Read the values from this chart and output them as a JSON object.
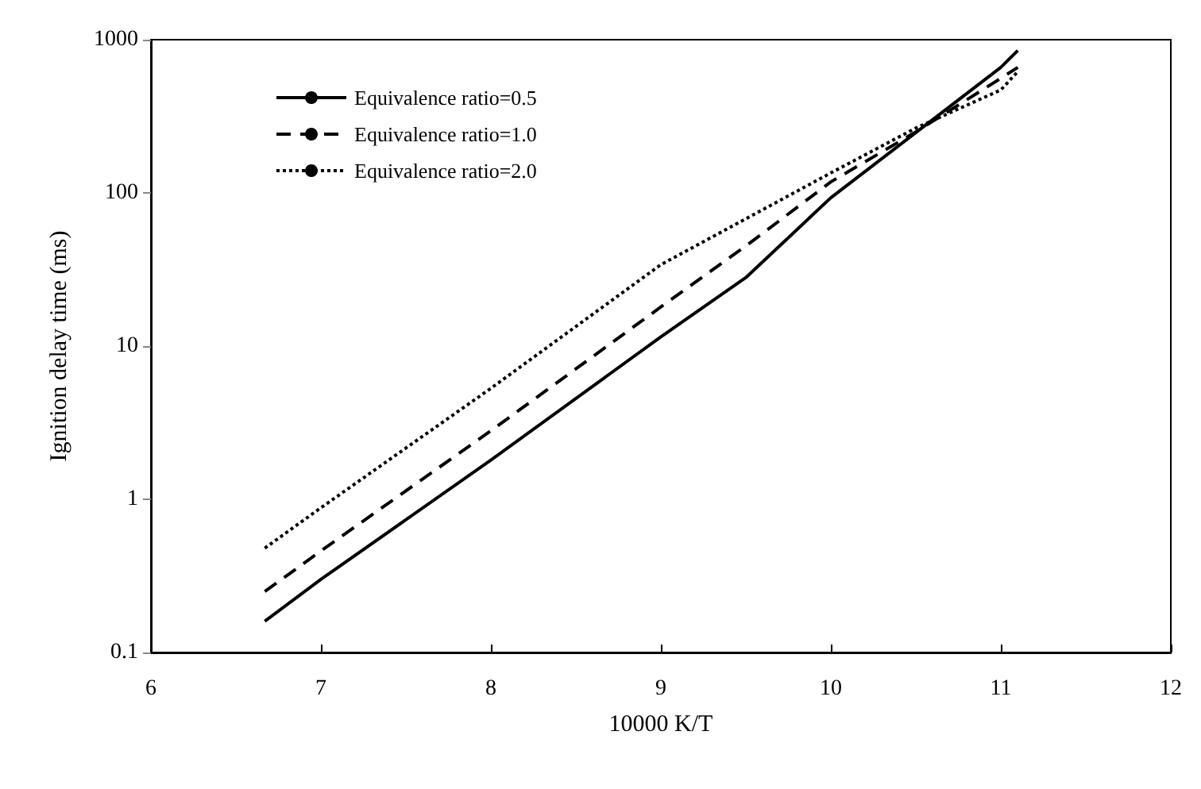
{
  "chart_data": {
    "type": "line",
    "xlabel": "10000 K/T",
    "ylabel": "Ignition delay time (ms)",
    "log": "y",
    "xlim": [
      6,
      12
    ],
    "xticks": [
      6,
      7,
      8,
      9,
      10,
      11,
      12
    ],
    "ylim": [
      0.1,
      1000
    ],
    "yticks": [
      0.1,
      1,
      10,
      100,
      1000
    ],
    "grid": false,
    "legend": "top left",
    "marker": "none",
    "series": [
      {
        "name": "Equivalence ratio=0.5",
        "color": "#000000",
        "line_style": "solid",
        "x": [
          6.67,
          7,
          8,
          9,
          9.5,
          10,
          11,
          11.1
        ],
        "values": [
          0.16,
          0.3,
          1.8,
          11.5,
          28,
          93,
          660,
          850
        ]
      },
      {
        "name": "Equivalence ratio=1.0",
        "color": "#000000",
        "line_style": "dashed",
        "x": [
          6.67,
          7,
          8,
          9,
          9.5,
          10,
          10.5,
          11,
          11.1
        ],
        "values": [
          0.25,
          0.46,
          2.8,
          18,
          45,
          118,
          250,
          560,
          660
        ]
      },
      {
        "name": "Equivalence ratio=2.0",
        "color": "#000000",
        "line_style": "dotted",
        "x": [
          6.67,
          7,
          8,
          9,
          10,
          10.5,
          11,
          11.1
        ],
        "values": [
          0.48,
          0.88,
          5.3,
          34,
          135,
          265,
          470,
          620
        ]
      }
    ]
  }
}
